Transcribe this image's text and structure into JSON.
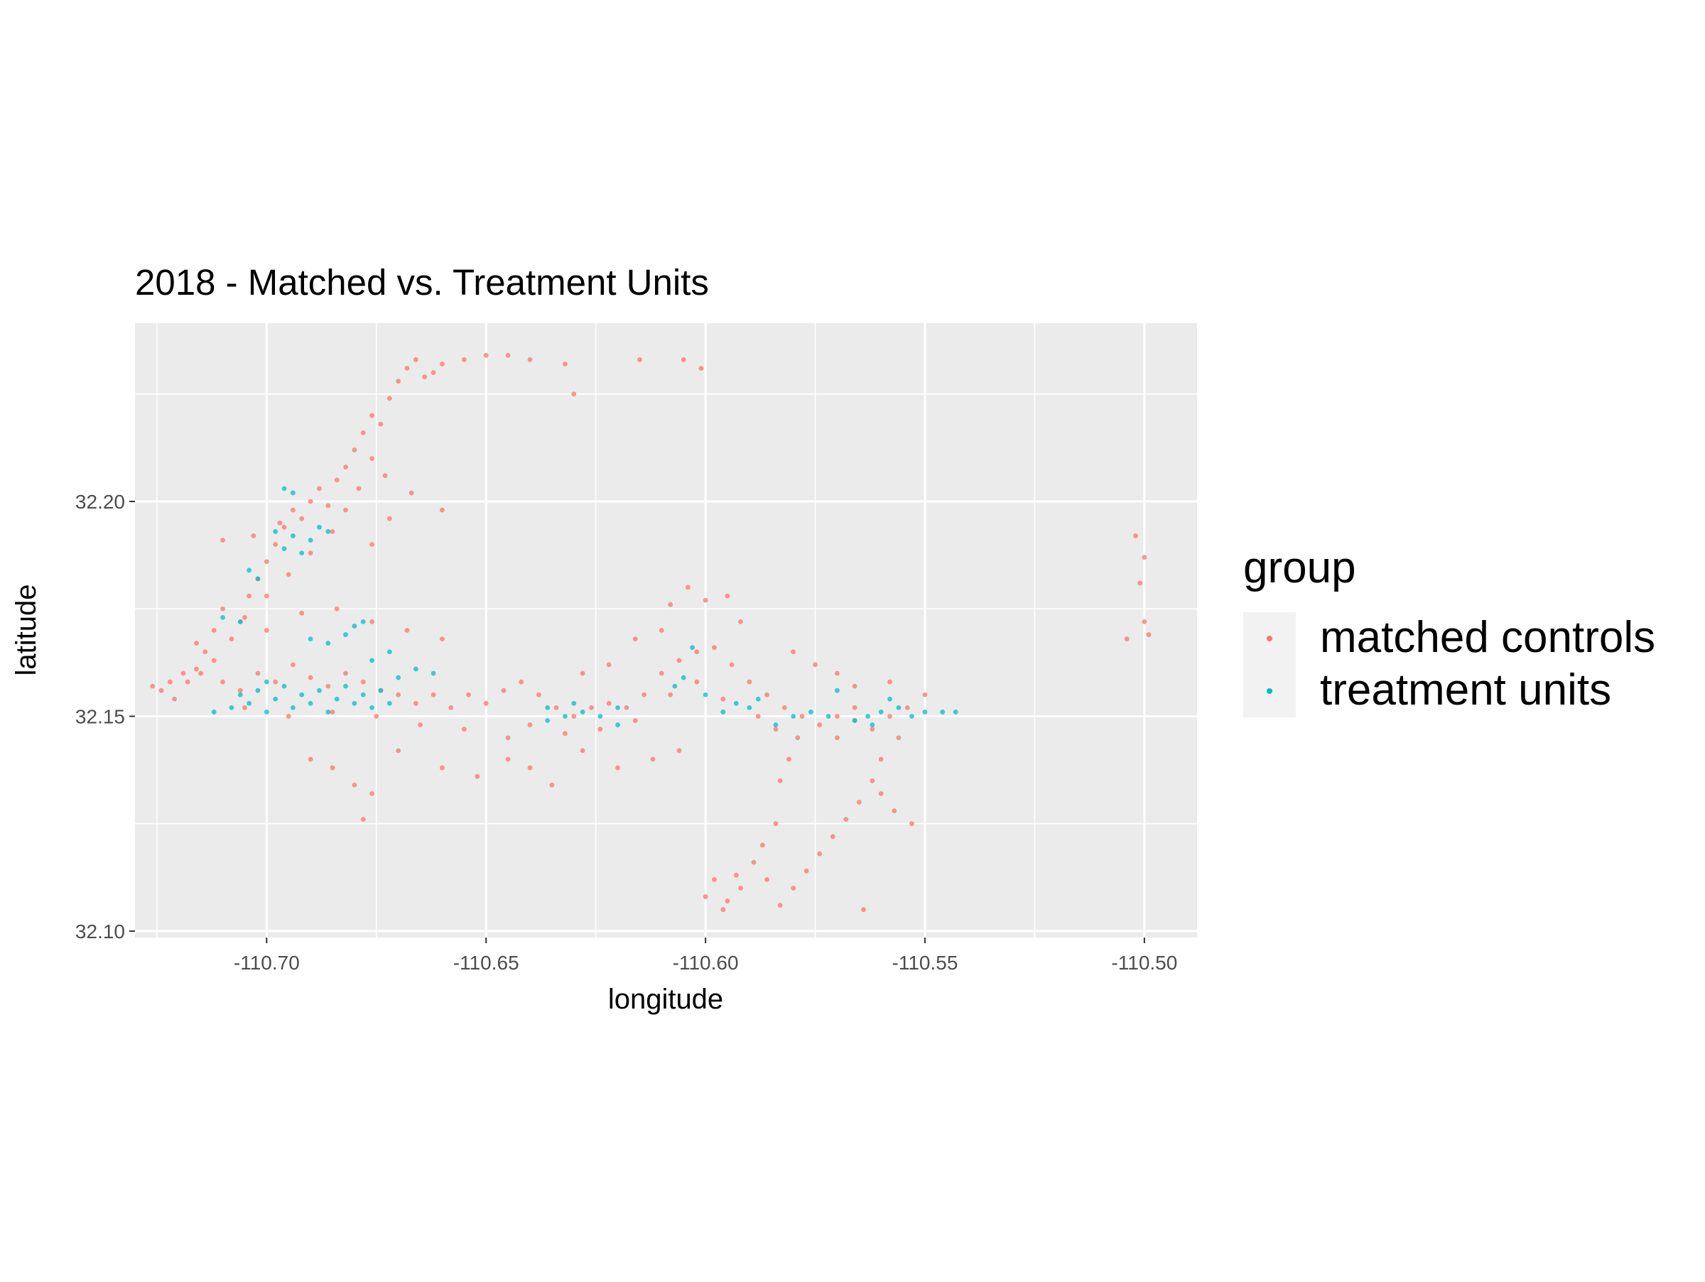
{
  "chart_data": {
    "type": "scatter",
    "title": "2018 - Matched vs. Treatment Units",
    "xlabel": "longitude",
    "ylabel": "latitude",
    "xlim": [
      -110.73,
      -110.488
    ],
    "ylim": [
      32.0985,
      32.2415
    ],
    "x_ticks": [
      {
        "value": -110.7,
        "label": "-110.70"
      },
      {
        "value": -110.65,
        "label": "-110.65"
      },
      {
        "value": -110.6,
        "label": "-110.60"
      },
      {
        "value": -110.55,
        "label": "-110.55"
      },
      {
        "value": -110.5,
        "label": "-110.50"
      }
    ],
    "y_ticks": [
      {
        "value": 32.1,
        "label": "32.10"
      },
      {
        "value": 32.15,
        "label": "32.15"
      },
      {
        "value": 32.2,
        "label": "32.20"
      }
    ],
    "grid": true,
    "legend": {
      "title": "group",
      "position": "right",
      "entries": [
        {
          "label": "matched controls",
          "color": "#F8766D"
        },
        {
          "label": "treatment units",
          "color": "#00BFC4"
        }
      ]
    },
    "series": [
      {
        "name": "matched controls",
        "color": "#F8766D",
        "points": [
          [
            -110.724,
            32.156
          ],
          [
            -110.721,
            32.154
          ],
          [
            -110.718,
            32.158
          ],
          [
            -110.716,
            32.161
          ],
          [
            -110.714,
            32.165
          ],
          [
            -110.712,
            32.17
          ],
          [
            -110.71,
            32.175
          ],
          [
            -110.708,
            32.168
          ],
          [
            -110.706,
            32.172
          ],
          [
            -110.704,
            32.178
          ],
          [
            -110.702,
            32.182
          ],
          [
            -110.7,
            32.186
          ],
          [
            -110.698,
            32.19
          ],
          [
            -110.696,
            32.194
          ],
          [
            -110.694,
            32.198
          ],
          [
            -110.692,
            32.196
          ],
          [
            -110.69,
            32.2
          ],
          [
            -110.688,
            32.203
          ],
          [
            -110.686,
            32.199
          ],
          [
            -110.684,
            32.205
          ],
          [
            -110.682,
            32.208
          ],
          [
            -110.68,
            32.212
          ],
          [
            -110.678,
            32.216
          ],
          [
            -110.676,
            32.22
          ],
          [
            -110.674,
            32.218
          ],
          [
            -110.672,
            32.224
          ],
          [
            -110.67,
            32.228
          ],
          [
            -110.668,
            32.231
          ],
          [
            -110.666,
            32.233
          ],
          [
            -110.664,
            32.229
          ],
          [
            -110.662,
            32.23
          ],
          [
            -110.66,
            32.232
          ],
          [
            -110.655,
            32.233
          ],
          [
            -110.65,
            32.234
          ],
          [
            -110.645,
            32.234
          ],
          [
            -110.64,
            32.233
          ],
          [
            -110.632,
            32.232
          ],
          [
            -110.63,
            32.225
          ],
          [
            -110.615,
            32.233
          ],
          [
            -110.605,
            32.233
          ],
          [
            -110.601,
            32.231
          ],
          [
            -110.676,
            32.21
          ],
          [
            -110.673,
            32.206
          ],
          [
            -110.679,
            32.203
          ],
          [
            -110.682,
            32.198
          ],
          [
            -110.685,
            32.193
          ],
          [
            -110.69,
            32.188
          ],
          [
            -110.695,
            32.183
          ],
          [
            -110.7,
            32.178
          ],
          [
            -110.705,
            32.173
          ],
          [
            -110.66,
            32.198
          ],
          [
            -110.667,
            32.202
          ],
          [
            -110.672,
            32.196
          ],
          [
            -110.676,
            32.19
          ],
          [
            -110.71,
            32.191
          ],
          [
            -110.722,
            32.158
          ],
          [
            -110.715,
            32.16
          ],
          [
            -110.71,
            32.158
          ],
          [
            -110.706,
            32.156
          ],
          [
            -110.702,
            32.16
          ],
          [
            -110.698,
            32.158
          ],
          [
            -110.694,
            32.162
          ],
          [
            -110.69,
            32.159
          ],
          [
            -110.686,
            32.157
          ],
          [
            -110.682,
            32.16
          ],
          [
            -110.678,
            32.158
          ],
          [
            -110.674,
            32.156
          ],
          [
            -110.67,
            32.155
          ],
          [
            -110.666,
            32.153
          ],
          [
            -110.662,
            32.155
          ],
          [
            -110.658,
            32.152
          ],
          [
            -110.654,
            32.155
          ],
          [
            -110.65,
            32.153
          ],
          [
            -110.646,
            32.156
          ],
          [
            -110.642,
            32.158
          ],
          [
            -110.638,
            32.155
          ],
          [
            -110.634,
            32.152
          ],
          [
            -110.63,
            32.15
          ],
          [
            -110.626,
            32.152
          ],
          [
            -110.622,
            32.153
          ],
          [
            -110.618,
            32.152
          ],
          [
            -110.614,
            32.155
          ],
          [
            -110.61,
            32.16
          ],
          [
            -110.606,
            32.163
          ],
          [
            -110.602,
            32.165
          ],
          [
            -110.598,
            32.166
          ],
          [
            -110.594,
            32.162
          ],
          [
            -110.59,
            32.158
          ],
          [
            -110.586,
            32.155
          ],
          [
            -110.582,
            32.152
          ],
          [
            -110.578,
            32.15
          ],
          [
            -110.574,
            32.148
          ],
          [
            -110.57,
            32.15
          ],
          [
            -110.566,
            32.149
          ],
          [
            -110.562,
            32.147
          ],
          [
            -110.558,
            32.15
          ],
          [
            -110.554,
            32.152
          ],
          [
            -110.55,
            32.155
          ],
          [
            -110.556,
            32.145
          ],
          [
            -110.56,
            32.14
          ],
          [
            -110.562,
            32.135
          ],
          [
            -110.565,
            32.13
          ],
          [
            -110.568,
            32.126
          ],
          [
            -110.571,
            32.122
          ],
          [
            -110.574,
            32.118
          ],
          [
            -110.577,
            32.114
          ],
          [
            -110.58,
            32.11
          ],
          [
            -110.583,
            32.106
          ],
          [
            -110.586,
            32.112
          ],
          [
            -110.589,
            32.116
          ],
          [
            -110.592,
            32.11
          ],
          [
            -110.595,
            32.107
          ],
          [
            -110.598,
            32.112
          ],
          [
            -110.6,
            32.108
          ],
          [
            -110.596,
            32.105
          ],
          [
            -110.593,
            32.113
          ],
          [
            -110.587,
            32.12
          ],
          [
            -110.584,
            32.125
          ],
          [
            -110.583,
            32.135
          ],
          [
            -110.581,
            32.14
          ],
          [
            -110.579,
            32.145
          ],
          [
            -110.564,
            32.105
          ],
          [
            -110.553,
            32.125
          ],
          [
            -110.557,
            32.128
          ],
          [
            -110.56,
            32.132
          ],
          [
            -110.69,
            32.14
          ],
          [
            -110.685,
            32.138
          ],
          [
            -110.68,
            32.134
          ],
          [
            -110.676,
            32.132
          ],
          [
            -110.678,
            32.126
          ],
          [
            -110.67,
            32.142
          ],
          [
            -110.66,
            32.138
          ],
          [
            -110.652,
            32.136
          ],
          [
            -110.645,
            32.14
          ],
          [
            -110.64,
            32.138
          ],
          [
            -110.635,
            32.134
          ],
          [
            -110.628,
            32.142
          ],
          [
            -110.62,
            32.138
          ],
          [
            -110.612,
            32.14
          ],
          [
            -110.606,
            32.142
          ],
          [
            -110.6,
            32.177
          ],
          [
            -110.604,
            32.18
          ],
          [
            -110.608,
            32.176
          ],
          [
            -110.595,
            32.178
          ],
          [
            -110.592,
            32.172
          ],
          [
            -110.61,
            32.17
          ],
          [
            -110.616,
            32.168
          ],
          [
            -110.622,
            32.162
          ],
          [
            -110.628,
            32.16
          ],
          [
            -110.58,
            32.165
          ],
          [
            -110.575,
            32.162
          ],
          [
            -110.57,
            32.16
          ],
          [
            -110.566,
            32.157
          ],
          [
            -110.66,
            32.168
          ],
          [
            -110.668,
            32.17
          ],
          [
            -110.676,
            32.172
          ],
          [
            -110.684,
            32.175
          ],
          [
            -110.692,
            32.174
          ],
          [
            -110.7,
            32.17
          ],
          [
            -110.712,
            32.163
          ],
          [
            -110.719,
            32.16
          ],
          [
            -110.716,
            32.167
          ],
          [
            -110.726,
            32.157
          ],
          [
            -110.703,
            32.192
          ],
          [
            -110.697,
            32.195
          ],
          [
            -110.502,
            32.192
          ],
          [
            -110.5,
            32.187
          ],
          [
            -110.501,
            32.181
          ],
          [
            -110.5,
            32.172
          ],
          [
            -110.499,
            32.169
          ],
          [
            -110.504,
            32.168
          ],
          [
            -110.645,
            32.145
          ],
          [
            -110.655,
            32.147
          ],
          [
            -110.665,
            32.148
          ],
          [
            -110.675,
            32.15
          ],
          [
            -110.685,
            32.151
          ],
          [
            -110.695,
            32.15
          ],
          [
            -110.705,
            32.152
          ],
          [
            -110.64,
            32.148
          ],
          [
            -110.632,
            32.146
          ],
          [
            -110.624,
            32.147
          ],
          [
            -110.616,
            32.149
          ],
          [
            -110.608,
            32.155
          ],
          [
            -110.602,
            32.158
          ],
          [
            -110.596,
            32.154
          ],
          [
            -110.588,
            32.15
          ],
          [
            -110.584,
            32.147
          ],
          [
            -110.57,
            32.145
          ],
          [
            -110.566,
            32.152
          ],
          [
            -110.558,
            32.158
          ]
        ]
      },
      {
        "name": "treatment units",
        "color": "#00BFC4",
        "points": [
          [
            -110.708,
            32.152
          ],
          [
            -110.706,
            32.155
          ],
          [
            -110.704,
            32.153
          ],
          [
            -110.702,
            32.156
          ],
          [
            -110.7,
            32.151
          ],
          [
            -110.698,
            32.154
          ],
          [
            -110.696,
            32.157
          ],
          [
            -110.694,
            32.152
          ],
          [
            -110.692,
            32.155
          ],
          [
            -110.69,
            32.153
          ],
          [
            -110.688,
            32.156
          ],
          [
            -110.686,
            32.151
          ],
          [
            -110.684,
            32.154
          ],
          [
            -110.682,
            32.157
          ],
          [
            -110.68,
            32.153
          ],
          [
            -110.678,
            32.155
          ],
          [
            -110.676,
            32.152
          ],
          [
            -110.674,
            32.156
          ],
          [
            -110.672,
            32.153
          ],
          [
            -110.67,
            32.159
          ],
          [
            -110.666,
            32.161
          ],
          [
            -110.662,
            32.16
          ],
          [
            -110.676,
            32.163
          ],
          [
            -110.672,
            32.165
          ],
          [
            -110.712,
            32.151
          ],
          [
            -110.696,
            32.203
          ],
          [
            -110.694,
            32.202
          ],
          [
            -110.698,
            32.193
          ],
          [
            -110.694,
            32.192
          ],
          [
            -110.69,
            32.191
          ],
          [
            -110.696,
            32.189
          ],
          [
            -110.692,
            32.188
          ],
          [
            -110.688,
            32.194
          ],
          [
            -110.686,
            32.193
          ],
          [
            -110.704,
            32.184
          ],
          [
            -110.702,
            32.182
          ],
          [
            -110.71,
            32.173
          ],
          [
            -110.706,
            32.172
          ],
          [
            -110.69,
            32.168
          ],
          [
            -110.686,
            32.167
          ],
          [
            -110.682,
            32.169
          ],
          [
            -110.68,
            32.171
          ],
          [
            -110.678,
            32.172
          ],
          [
            -110.636,
            32.152
          ],
          [
            -110.632,
            32.15
          ],
          [
            -110.63,
            32.153
          ],
          [
            -110.628,
            32.151
          ],
          [
            -110.624,
            32.15
          ],
          [
            -110.62,
            32.152
          ],
          [
            -110.636,
            32.149
          ],
          [
            -110.607,
            32.157
          ],
          [
            -110.605,
            32.159
          ],
          [
            -110.603,
            32.166
          ],
          [
            -110.6,
            32.155
          ],
          [
            -110.596,
            32.151
          ],
          [
            -110.593,
            32.153
          ],
          [
            -110.59,
            32.152
          ],
          [
            -110.588,
            32.154
          ],
          [
            -110.58,
            32.15
          ],
          [
            -110.576,
            32.151
          ],
          [
            -110.572,
            32.15
          ],
          [
            -110.57,
            32.156
          ],
          [
            -110.566,
            32.149
          ],
          [
            -110.563,
            32.15
          ],
          [
            -110.56,
            32.151
          ],
          [
            -110.558,
            32.154
          ],
          [
            -110.556,
            32.152
          ],
          [
            -110.553,
            32.15
          ],
          [
            -110.55,
            32.151
          ],
          [
            -110.546,
            32.151
          ],
          [
            -110.543,
            32.151
          ],
          [
            -110.562,
            32.148
          ],
          [
            -110.584,
            32.148
          ],
          [
            -110.62,
            32.148
          ],
          [
            -110.7,
            32.158
          ]
        ]
      }
    ]
  }
}
